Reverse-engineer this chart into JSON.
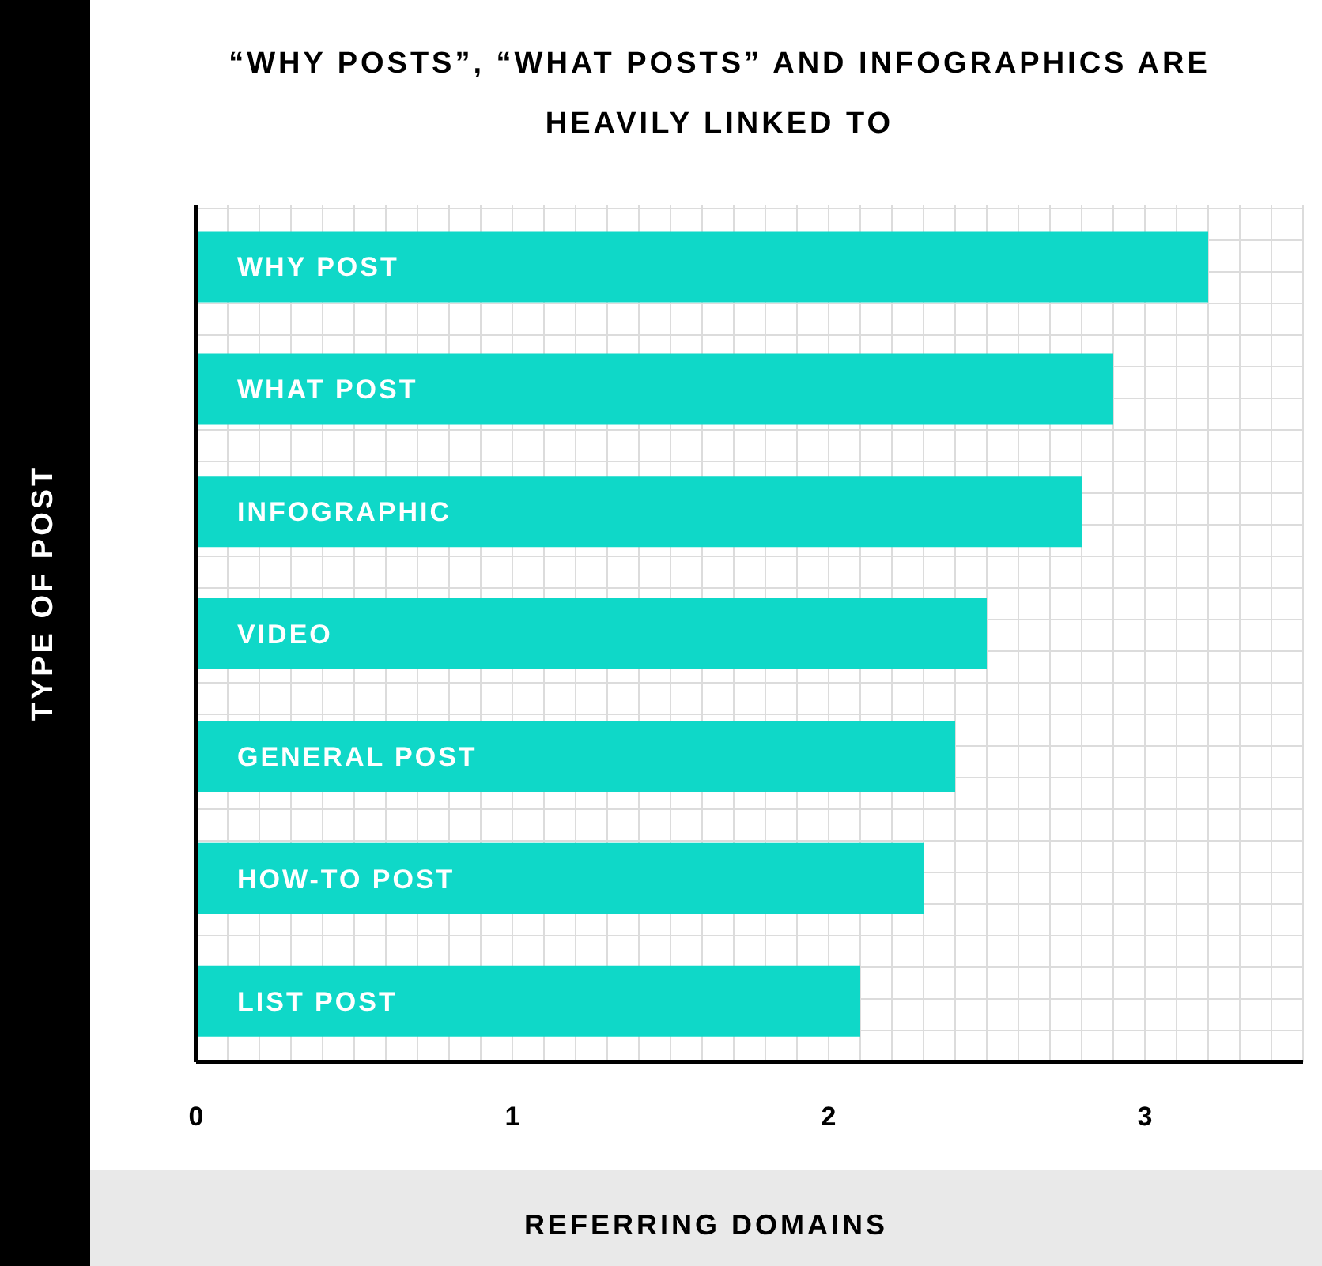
{
  "chart_data": {
    "type": "bar",
    "orientation": "horizontal",
    "title": "“WHY POSTS”, “WHAT POSTS” AND INFOGRAPHICS ARE HEAVILY LINKED TO",
    "xlabel": "REFERRING DOMAINS",
    "ylabel": "TYPE OF POST",
    "categories": [
      "WHY POST",
      "WHAT POST",
      "INFOGRAPHIC",
      "VIDEO",
      "GENERAL POST",
      "HOW-TO POST",
      "LIST POST"
    ],
    "values": [
      3.2,
      2.9,
      2.8,
      2.5,
      2.4,
      2.3,
      2.1
    ],
    "color": "#0fd8c8",
    "xlim": [
      0,
      3.5
    ],
    "xticks": [
      0,
      {
        "value": 0.1,
        "label": null
      },
      {
        "value": 0.2,
        "label": null
      },
      {
        "value": 0.3,
        "label": null
      },
      {
        "value": 0.4,
        "label": null
      },
      {
        "value": 0.5,
        "label": null
      },
      {
        "value": 0.6,
        "label": null
      },
      {
        "value": 0.7,
        "label": null
      },
      {
        "value": 0.8,
        "label": null
      },
      {
        "value": 0.9,
        "label": null
      },
      1,
      {
        "value": 1.1,
        "label": null
      },
      {
        "value": 1.2,
        "label": null
      },
      {
        "value": 1.3,
        "label": null
      },
      {
        "value": 1.4,
        "label": null
      },
      {
        "value": 1.5,
        "label": null
      },
      {
        "value": 1.6,
        "label": null
      },
      {
        "value": 1.7,
        "label": null
      },
      {
        "value": 1.8,
        "label": null
      },
      {
        "value": 1.9,
        "label": null
      },
      2,
      {
        "value": 2.1,
        "label": null
      },
      {
        "value": 2.2,
        "label": null
      },
      {
        "value": 2.3,
        "label": null
      },
      {
        "value": 2.4,
        "label": null
      },
      {
        "value": 2.5,
        "label": null
      },
      {
        "value": 2.6,
        "label": null
      },
      {
        "value": 2.7,
        "label": null
      },
      {
        "value": 2.8,
        "label": null
      },
      {
        "value": 2.9,
        "label": null
      },
      3,
      {
        "value": 3.1,
        "label": null
      },
      {
        "value": 3.2,
        "label": null
      },
      {
        "value": 3.3,
        "label": null
      },
      {
        "value": 3.4,
        "label": null
      },
      {
        "value": 3.5,
        "label": null
      }
    ],
    "grid": true
  }
}
